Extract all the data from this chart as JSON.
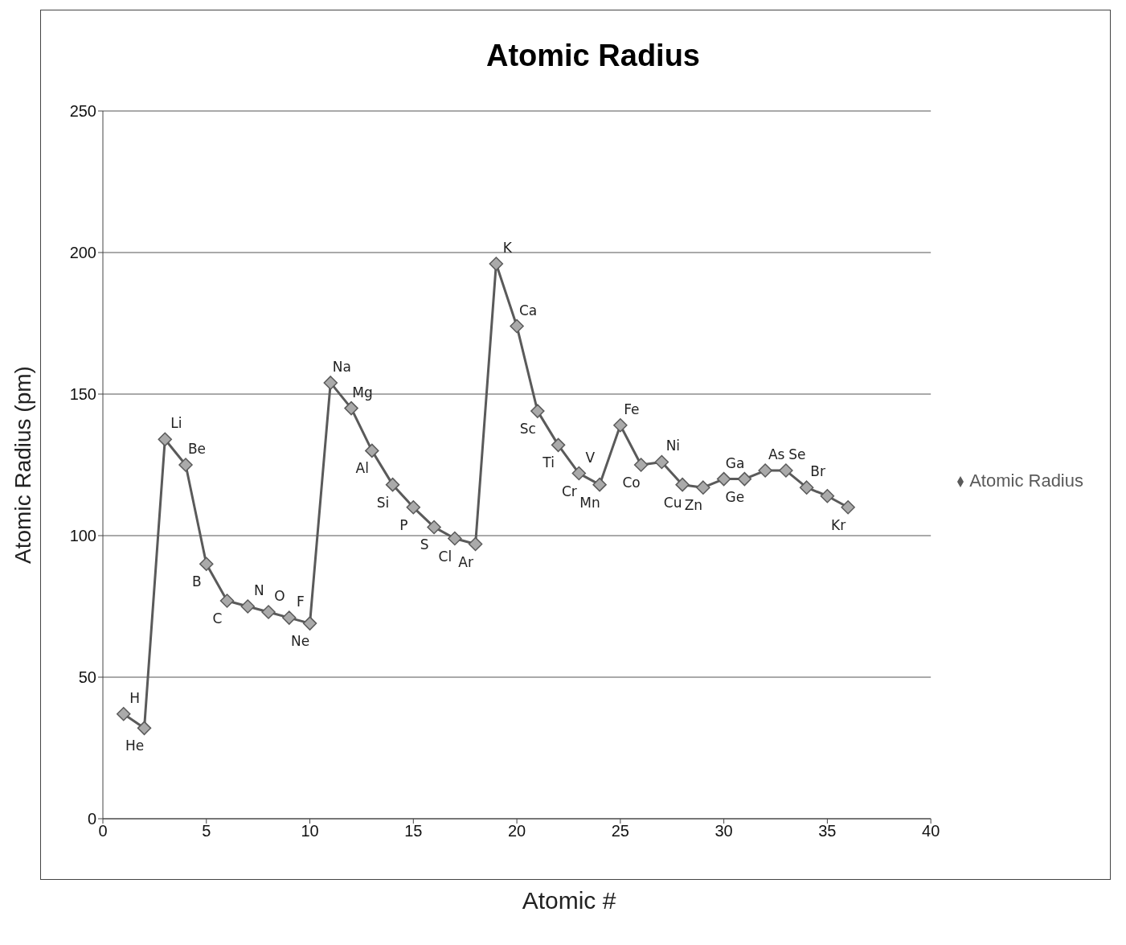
{
  "chart_data": {
    "type": "line",
    "title": "Atomic Radius",
    "xlabel": "Atomic #",
    "ylabel": "Atomic Radius (pm)",
    "x": [
      1,
      2,
      3,
      4,
      5,
      6,
      7,
      8,
      9,
      10,
      11,
      12,
      13,
      14,
      15,
      16,
      17,
      18,
      19,
      20,
      21,
      22,
      23,
      24,
      25,
      26,
      27,
      28,
      29,
      30,
      31,
      32,
      33,
      34,
      35,
      36
    ],
    "series": [
      {
        "name": "Atomic Radius",
        "color": "#5a5a5a",
        "values": [
          37,
          32,
          134,
          125,
          90,
          77,
          75,
          73,
          71,
          69,
          154,
          145,
          130,
          118,
          110,
          103,
          99,
          97,
          196,
          174,
          144,
          132,
          122,
          118,
          139,
          125,
          126,
          118,
          117,
          120,
          120,
          123,
          123,
          117,
          114,
          110
        ]
      }
    ],
    "xlim": [
      0,
      40
    ],
    "xticks": [
      0,
      5,
      10,
      15,
      20,
      25,
      30,
      35,
      40
    ],
    "ylim": [
      0,
      250
    ],
    "yticks": [
      0,
      50,
      100,
      150,
      200,
      250
    ],
    "grid": "y",
    "legend": "right",
    "marker": "diamond",
    "line_style": "solid",
    "annotations": [
      {
        "text": "H",
        "x": 1,
        "y": 37
      },
      {
        "text": "He",
        "x": 2,
        "y": 32
      },
      {
        "text": "Li",
        "x": 3,
        "y": 134
      },
      {
        "text": "Be",
        "x": 4,
        "y": 125
      },
      {
        "text": "B",
        "x": 5,
        "y": 90
      },
      {
        "text": "C",
        "x": 6,
        "y": 77
      },
      {
        "text": "N",
        "x": 7,
        "y": 75
      },
      {
        "text": "O",
        "x": 8,
        "y": 73
      },
      {
        "text": "F",
        "x": 9,
        "y": 71
      },
      {
        "text": "Ne",
        "x": 10,
        "y": 69
      },
      {
        "text": "Na",
        "x": 11,
        "y": 154
      },
      {
        "text": "Mg",
        "x": 12,
        "y": 145
      },
      {
        "text": "Al",
        "x": 13,
        "y": 130
      },
      {
        "text": "Si",
        "x": 14,
        "y": 118
      },
      {
        "text": "P",
        "x": 15,
        "y": 110
      },
      {
        "text": "S",
        "x": 16,
        "y": 103
      },
      {
        "text": "Cl",
        "x": 17,
        "y": 99
      },
      {
        "text": "Ar",
        "x": 18,
        "y": 97
      },
      {
        "text": "K",
        "x": 19,
        "y": 196
      },
      {
        "text": "Ca",
        "x": 20,
        "y": 174
      },
      {
        "text": "Sc",
        "x": 21,
        "y": 144
      },
      {
        "text": "Ti",
        "x": 22,
        "y": 132
      },
      {
        "text": "V",
        "x": 23,
        "y": 122
      },
      {
        "text": "Cr",
        "x": 23,
        "y": 122
      },
      {
        "text": "Mn",
        "x": 24,
        "y": 118
      },
      {
        "text": "Fe",
        "x": 25,
        "y": 139
      },
      {
        "text": "Co",
        "x": 26,
        "y": 125
      },
      {
        "text": "Ni",
        "x": 27,
        "y": 126
      },
      {
        "text": "Cu",
        "x": 28,
        "y": 118
      },
      {
        "text": "Zn",
        "x": 29,
        "y": 117
      },
      {
        "text": "Ga",
        "x": 30,
        "y": 120
      },
      {
        "text": "Ge",
        "x": 31,
        "y": 120
      },
      {
        "text": "As",
        "x": 32,
        "y": 123
      },
      {
        "text": "Se",
        "x": 33,
        "y": 123
      },
      {
        "text": "Br",
        "x": 34,
        "y": 117
      },
      {
        "text": "Kr",
        "x": 36,
        "y": 110
      }
    ]
  }
}
